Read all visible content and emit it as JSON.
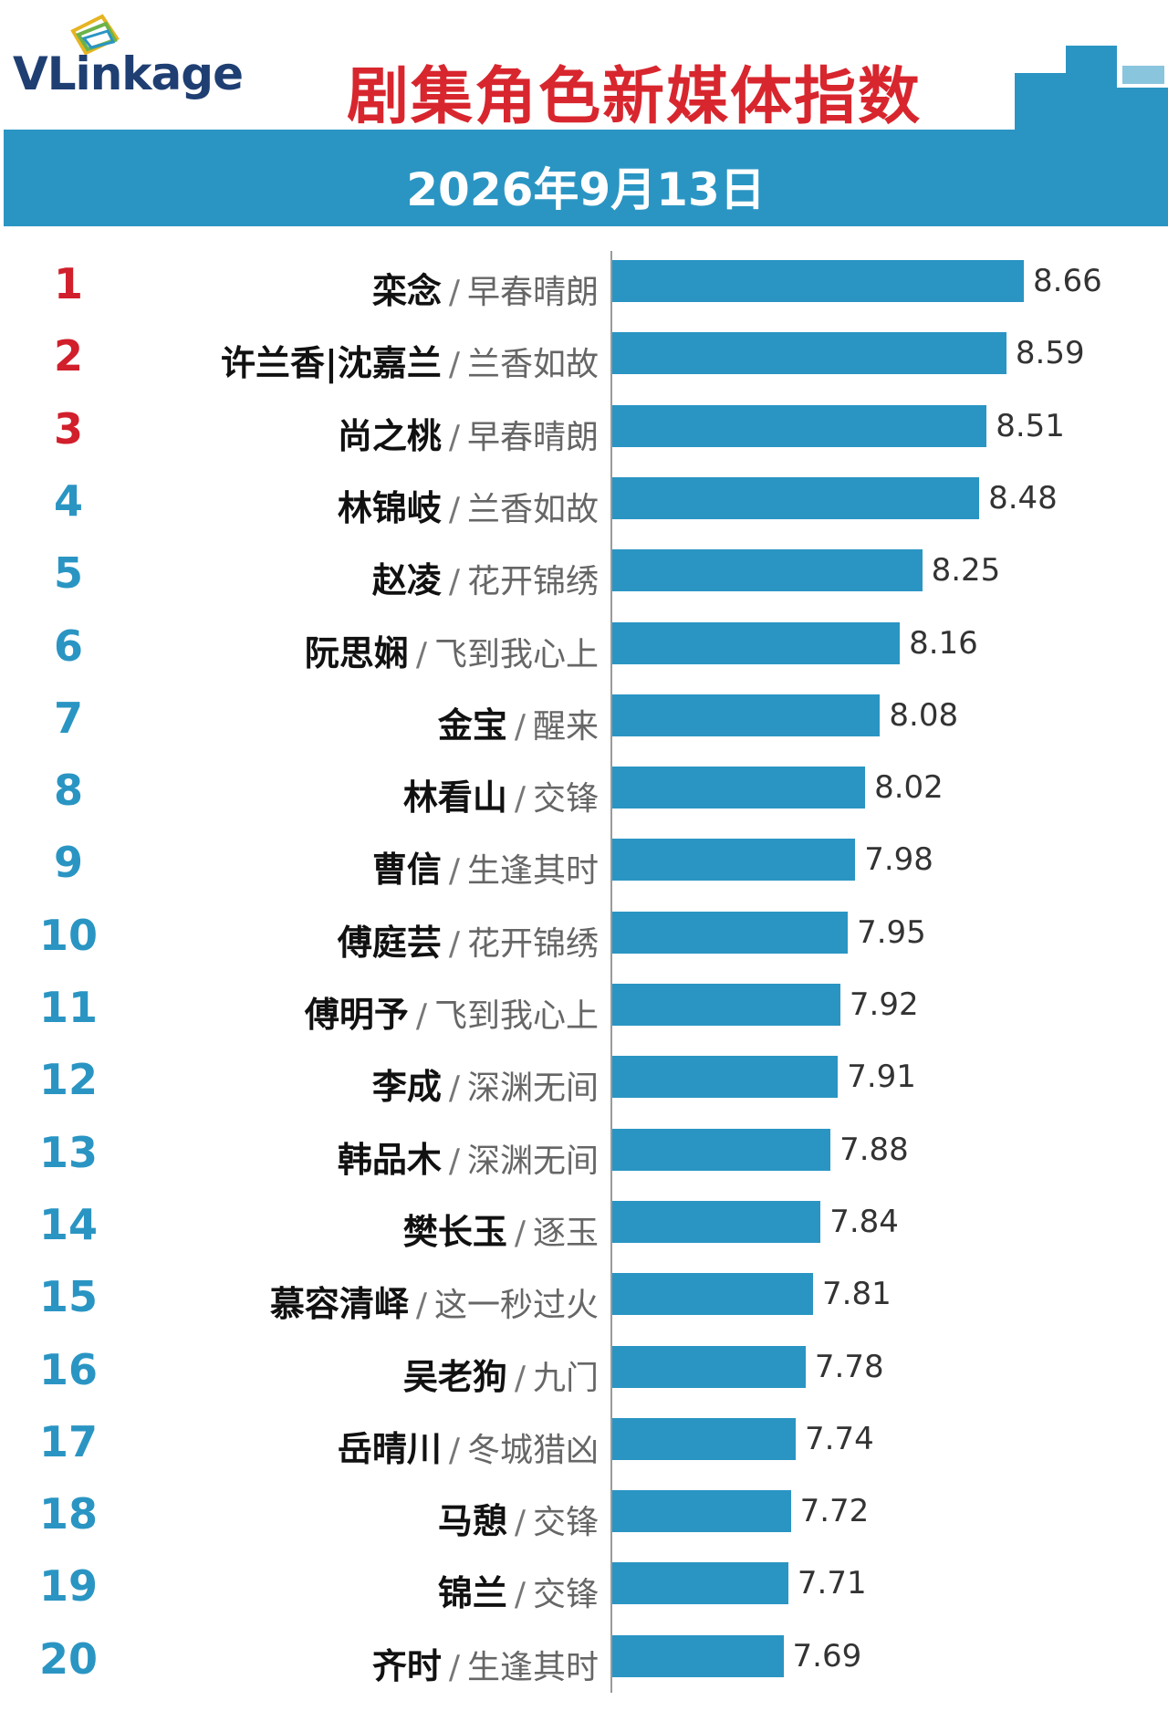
{
  "header": {
    "logo": "VLinkage",
    "title": "剧集角色新媒体指数",
    "date": "2026年9月13日"
  },
  "colors": {
    "accent": "#2a95c3",
    "title_red": "#d8262e",
    "top_rank_red": "#d11f2c",
    "rank_blue": "#2a95c3"
  },
  "chart_data": {
    "type": "bar",
    "orientation": "horizontal",
    "title": "剧集角色新媒体指数",
    "xlabel": "",
    "ylabel": "",
    "grid": false,
    "xlim": [
      7.0,
      8.8
    ],
    "rows": [
      {
        "rank": "1",
        "name": "栾念",
        "drama": "早春晴朗",
        "value": 8.66,
        "label": "8.66"
      },
      {
        "rank": "2",
        "name": "许兰香|沈嘉兰",
        "drama": "兰香如故",
        "value": 8.59,
        "label": "8.59"
      },
      {
        "rank": "3",
        "name": "尚之桃",
        "drama": "早春晴朗",
        "value": 8.51,
        "label": "8.51"
      },
      {
        "rank": "4",
        "name": "林锦岐",
        "drama": "兰香如故",
        "value": 8.48,
        "label": "8.48"
      },
      {
        "rank": "5",
        "name": "赵凌",
        "drama": "花开锦绣",
        "value": 8.25,
        "label": "8.25"
      },
      {
        "rank": "6",
        "name": "阮思娴",
        "drama": "飞到我心上",
        "value": 8.16,
        "label": "8.16"
      },
      {
        "rank": "7",
        "name": "金宝",
        "drama": "醒来",
        "value": 8.08,
        "label": "8.08"
      },
      {
        "rank": "8",
        "name": "林看山",
        "drama": "交锋",
        "value": 8.02,
        "label": "8.02"
      },
      {
        "rank": "9",
        "name": "曹信",
        "drama": "生逢其时",
        "value": 7.98,
        "label": "7.98"
      },
      {
        "rank": "10",
        "name": "傅庭芸",
        "drama": "花开锦绣",
        "value": 7.95,
        "label": "7.95"
      },
      {
        "rank": "11",
        "name": "傅明予",
        "drama": "飞到我心上",
        "value": 7.92,
        "label": "7.92"
      },
      {
        "rank": "12",
        "name": "李成",
        "drama": "深渊无间",
        "value": 7.91,
        "label": "7.91"
      },
      {
        "rank": "13",
        "name": "韩品木",
        "drama": "深渊无间",
        "value": 7.88,
        "label": "7.88"
      },
      {
        "rank": "14",
        "name": "樊长玉",
        "drama": "逐玉",
        "value": 7.84,
        "label": "7.84"
      },
      {
        "rank": "15",
        "name": "慕容清峄",
        "drama": "这一秒过火",
        "value": 7.81,
        "label": "7.81"
      },
      {
        "rank": "16",
        "name": "吴老狗",
        "drama": "九门",
        "value": 7.78,
        "label": "7.78"
      },
      {
        "rank": "17",
        "name": "岳晴川",
        "drama": "冬城猎凶",
        "value": 7.74,
        "label": "7.74"
      },
      {
        "rank": "18",
        "name": "马憩",
        "drama": "交锋",
        "value": 7.72,
        "label": "7.72"
      },
      {
        "rank": "19",
        "name": "锦兰",
        "drama": "交锋",
        "value": 7.71,
        "label": "7.71"
      },
      {
        "rank": "20",
        "name": "齐时",
        "drama": "生逢其时",
        "value": 7.69,
        "label": "7.69"
      }
    ]
  }
}
